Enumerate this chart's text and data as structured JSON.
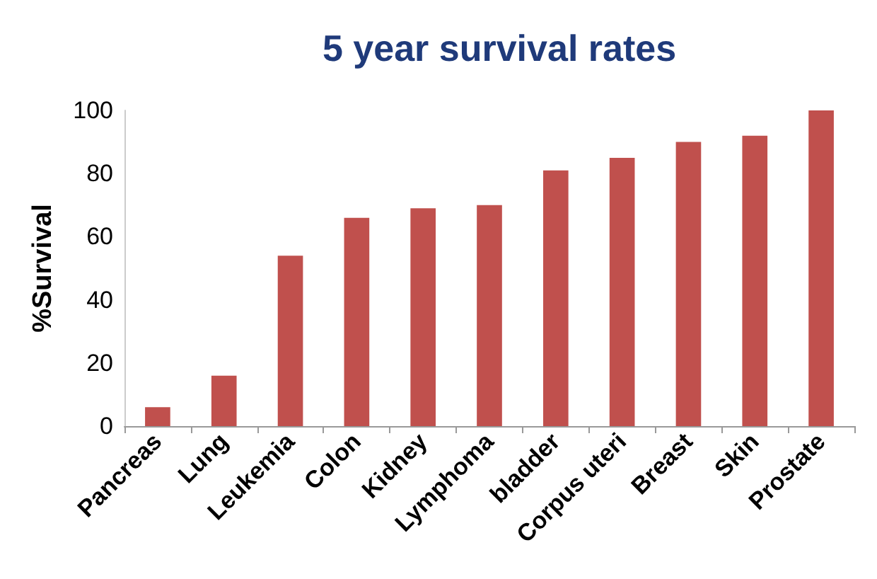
{
  "chart_data": {
    "type": "bar",
    "title": "5 year survival rates",
    "ylabel": "%Survival",
    "categories": [
      "Pancreas",
      "Lung",
      "Leukemia",
      "Colon",
      "Kidney",
      "Lymphoma",
      "bladder",
      "Corpus uteri",
      "Breast",
      "Skin",
      "Prostate"
    ],
    "values": [
      6,
      16,
      54,
      66,
      69,
      70,
      81,
      85,
      90,
      92,
      100
    ],
    "color": "#c0504d",
    "ylim": [
      0,
      100
    ],
    "yticks": [
      0,
      20,
      40,
      60,
      80,
      100
    ],
    "grid": false
  }
}
